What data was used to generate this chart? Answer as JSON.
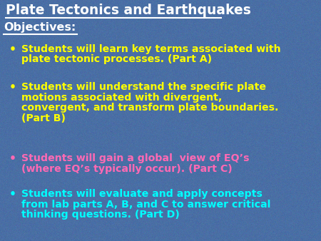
{
  "title": "Plate Tectonics and Earthquakes",
  "title_color": "#FFFFFF",
  "title_fontsize": 13.5,
  "objectives_label": "Objectives:",
  "objectives_color": "#FFFFFF",
  "objectives_fontsize": 11.5,
  "background_color": "#4A6FA5",
  "bullet_char": "•",
  "bullet_fontsize": 10.2,
  "bullets": [
    {
      "lines": [
        "Students will learn key terms associated with",
        "plate tectonic processes. (Part A)"
      ],
      "color": "#FFFF00"
    },
    {
      "lines": [
        "Students will understand the specific plate",
        "motions associated with divergent,",
        "convergent, and transform plate boundaries.",
        "(Part B)"
      ],
      "color": "#FFFF00"
    },
    {
      "lines": [
        "Students will gain a global  view of EQ’s",
        "(where EQ’s typically occur). (Part C)"
      ],
      "color": "#FF69B4"
    },
    {
      "lines": [
        "Students will evaluate and apply concepts",
        "from lab parts A, B, and C to answer critical",
        "thinking questions. (Part D)"
      ],
      "color": "#00FFFF"
    }
  ]
}
